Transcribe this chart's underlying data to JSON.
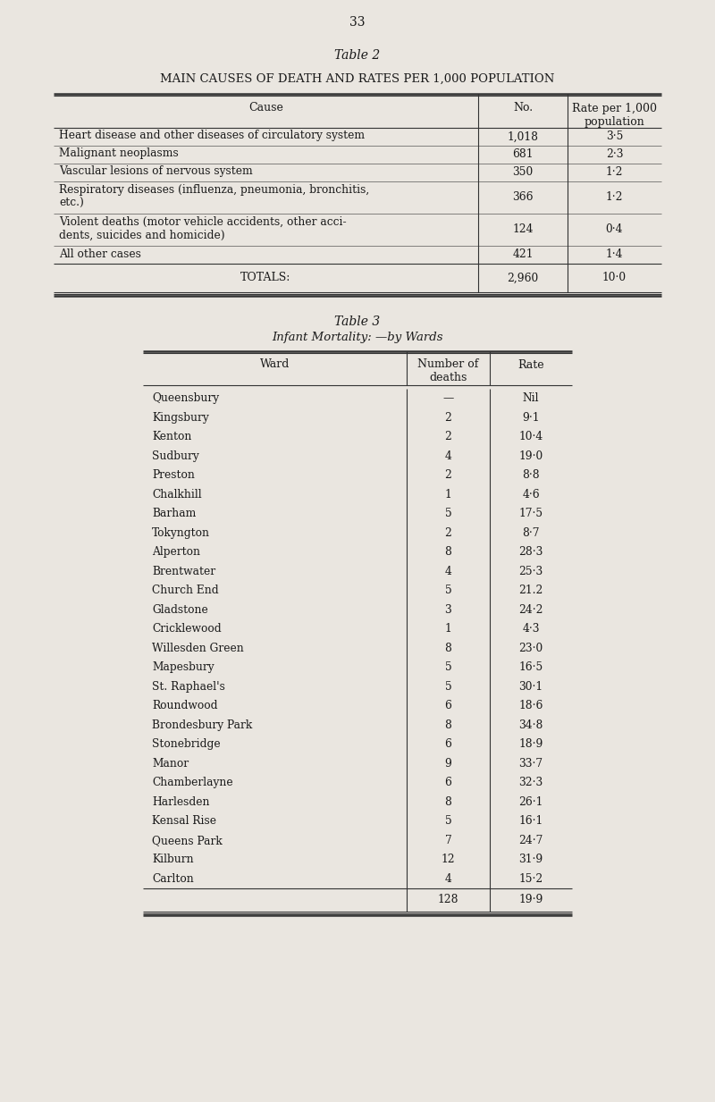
{
  "page_number": "33",
  "table2_title": "Table 2",
  "table2_subtitle": "MAIN CAUSES OF DEATH AND RATES PER 1,000 POPULATION",
  "table2_rows": [
    [
      "Heart disease and other diseases of circulatory system",
      "1,018",
      "3·5"
    ],
    [
      "Malignant neoplasms",
      "681",
      "2·3"
    ],
    [
      "Vascular lesions of nervous system",
      "350",
      "1·2"
    ],
    [
      "Respiratory diseases (influenza, pneumonia, bronchitis,\netc.)",
      "366",
      "1·2"
    ],
    [
      "Violent deaths (motor vehicle accidents, other acci-\ndents, suicides and homicide)",
      "124",
      "0·4"
    ],
    [
      "All other cases",
      "421",
      "1·4"
    ]
  ],
  "table2_totals_label": "TOTALS:",
  "table2_totals_no": "2,960",
  "table2_totals_rate": "10·0",
  "table3_title": "Table 3",
  "table3_subtitle": "Infant Mortality: —by Wards",
  "table3_rows": [
    [
      "Queensbury",
      "—",
      "Nil"
    ],
    [
      "Kingsbury",
      "2",
      "9·1"
    ],
    [
      "Kenton",
      "2",
      "10·4"
    ],
    [
      "Sudbury",
      "4",
      "19·0"
    ],
    [
      "Preston",
      "2",
      "8·8"
    ],
    [
      "Chalkhill",
      "1",
      "4·6"
    ],
    [
      "Barham",
      "5",
      "17·5"
    ],
    [
      "Tokyngton",
      "2",
      "8·7"
    ],
    [
      "Alperton",
      "8",
      "28·3"
    ],
    [
      "Brentwater",
      "4",
      "25·3"
    ],
    [
      "Church End",
      "5",
      "21.2"
    ],
    [
      "Gladstone",
      "3",
      "24·2"
    ],
    [
      "Cricklewood",
      "1",
      "4·3"
    ],
    [
      "Willesden Green",
      "8",
      "23·0"
    ],
    [
      "Mapesbury",
      "5",
      "16·5"
    ],
    [
      "St. Raphael's",
      "5",
      "30·1"
    ],
    [
      "Roundwood",
      "6",
      "18·6"
    ],
    [
      "Brondesbury Park",
      "8",
      "34·8"
    ],
    [
      "Stonebridge",
      "6",
      "18·9"
    ],
    [
      "Manor",
      "9",
      "33·7"
    ],
    [
      "Chamberlayne",
      "6",
      "32·3"
    ],
    [
      "Harlesden",
      "8",
      "26·1"
    ],
    [
      "Kensal Rise",
      "5",
      "16·1"
    ],
    [
      "Queens Park",
      "7",
      "24·7"
    ],
    [
      "Kilburn",
      "12",
      "31·9"
    ],
    [
      "Carlton",
      "4",
      "15·2"
    ]
  ],
  "table3_totals_no": "128",
  "table3_totals_rate": "19·9",
  "bg_color": "#eae6e0",
  "text_color": "#1a1a1a",
  "line_color": "#333333"
}
